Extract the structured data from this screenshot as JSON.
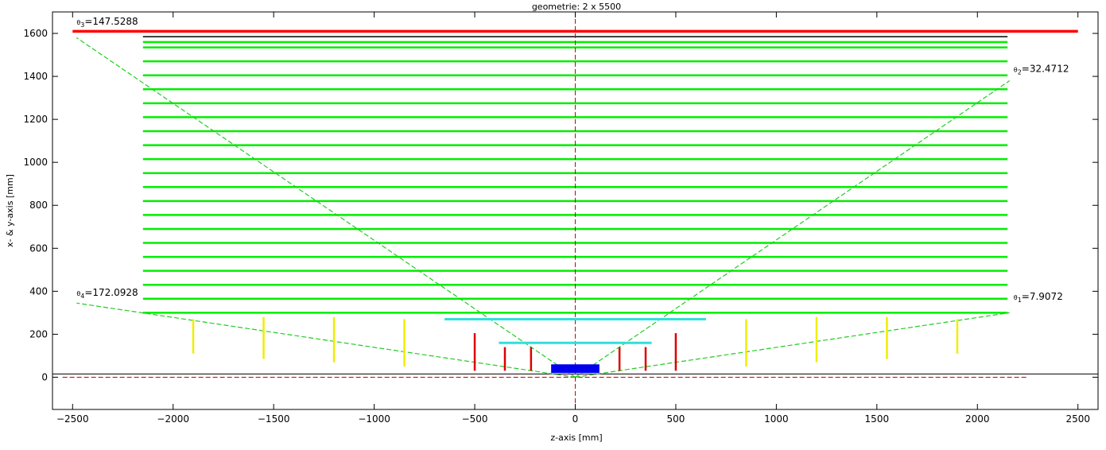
{
  "chart_data": {
    "type": "line",
    "title": "geometrie: 2 x 5500 ",
    "xlabel": "z-axis [mm]",
    "ylabel": "x- & y-axis [mm]",
    "xlim": [
      -2600,
      2600
    ],
    "ylim": [
      -150,
      1700
    ],
    "xticks": [
      -2500,
      -2000,
      -1500,
      -1000,
      -500,
      0,
      500,
      1000,
      1500,
      2000,
      2500
    ],
    "yticks": [
      0,
      200,
      400,
      600,
      800,
      1000,
      1200,
      1400,
      1600
    ],
    "grid": false,
    "colors": {
      "outer_plate": "#ff0000",
      "plates": "#00ee00",
      "plate_edge": "#000000",
      "cones": "#22cc22",
      "axis_line": "#cc0000",
      "yellow_bars": "#eeee00",
      "red_bars": "#dd0000",
      "cyan_bars": "#33dddd",
      "target": "#0000ee",
      "baseline": "#000000"
    },
    "outer_plate": {
      "z": [
        -2500,
        2500
      ],
      "y": 1610
    },
    "plate_edge": {
      "z": [
        -2150,
        2150
      ],
      "y": 1585
    },
    "plates": {
      "z": [
        -2150,
        2150
      ],
      "y": [
        300,
        365,
        430,
        495,
        560,
        625,
        690,
        755,
        820,
        885,
        950,
        1015,
        1080,
        1145,
        1210,
        1275,
        1340,
        1405,
        1470,
        1535,
        1560
      ]
    },
    "cone_lines": [
      {
        "name": "",
        "x": [
          0,
          2160
        ],
        "y": [
          0,
          1380
        ]
      },
      {
        "name": "",
        "x": [
          0,
          -2480
        ],
        "y": [
          0,
          1580
        ]
      },
      {
        "name": "",
        "x": [
          0,
          2160
        ],
        "y": [
          0,
          300
        ]
      },
      {
        "name": "",
        "x": [
          0,
          -2480
        ],
        "y": [
          0,
          345
        ]
      }
    ],
    "vertical_axis_line": {
      "z": 0,
      "y": [
        -120,
        1700
      ]
    },
    "baseline_black": {
      "z": [
        -2600,
        2600
      ],
      "y": 15
    },
    "baseline_red": {
      "z": [
        -2550,
        2250
      ],
      "y": 0
    },
    "yellow_bars": [
      {
        "z": -1900,
        "y": [
          110,
          270
        ]
      },
      {
        "z": -1550,
        "y": [
          85,
          280
        ]
      },
      {
        "z": -1200,
        "y": [
          70,
          280
        ]
      },
      {
        "z": -850,
        "y": [
          50,
          270
        ]
      },
      {
        "z": 850,
        "y": [
          50,
          270
        ]
      },
      {
        "z": 1200,
        "y": [
          70,
          280
        ]
      },
      {
        "z": 1550,
        "y": [
          85,
          280
        ]
      },
      {
        "z": 1900,
        "y": [
          110,
          270
        ]
      }
    ],
    "red_bars": [
      {
        "z": -500,
        "y": [
          30,
          205
        ]
      },
      {
        "z": -350,
        "y": [
          30,
          140
        ]
      },
      {
        "z": -220,
        "y": [
          30,
          140
        ]
      },
      {
        "z": 220,
        "y": [
          30,
          140
        ]
      },
      {
        "z": 350,
        "y": [
          30,
          140
        ]
      },
      {
        "z": 500,
        "y": [
          30,
          205
        ]
      }
    ],
    "cyan_bars": [
      {
        "z": [
          -650,
          650
        ],
        "y": 270
      },
      {
        "z": [
          -380,
          380
        ],
        "y": 160
      }
    ],
    "target": {
      "z": [
        -120,
        120
      ],
      "y": [
        20,
        60
      ]
    },
    "annotations": [
      {
        "symbol": "θ",
        "sub": "3",
        "text": "=147.5288",
        "x": -2480,
        "y": 1640
      },
      {
        "symbol": "θ",
        "sub": "2",
        "text": "=32.4712",
        "x": 2180,
        "y": 1420
      },
      {
        "symbol": "θ",
        "sub": "4",
        "text": "=172.0928",
        "x": -2480,
        "y": 380
      },
      {
        "symbol": "θ",
        "sub": "1",
        "text": "=7.9072",
        "x": 2180,
        "y": 360
      }
    ]
  }
}
